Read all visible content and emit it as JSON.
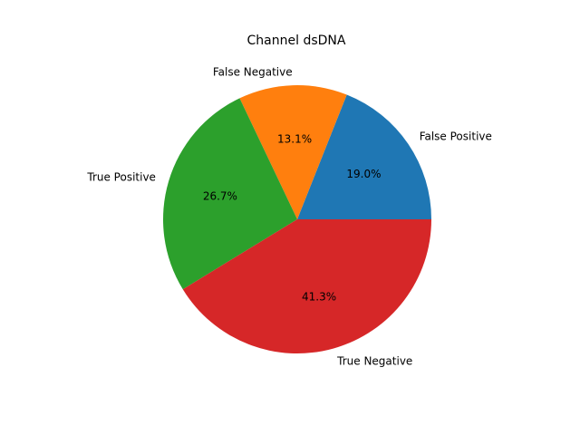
{
  "chart_data": {
    "type": "pie",
    "title": "Channel dsDNA",
    "start_angle_deg": 0,
    "direction": "counterclockwise",
    "slices": [
      {
        "label": "False Positive",
        "value": 19.0,
        "percent_label": "19.0%",
        "color": "#1f77b4"
      },
      {
        "label": "False Negative",
        "value": 13.1,
        "percent_label": "13.1%",
        "color": "#ff7f0e"
      },
      {
        "label": "True Positive",
        "value": 26.7,
        "percent_label": "26.7%",
        "color": "#2ca02c"
      },
      {
        "label": "True Negative",
        "value": 41.3,
        "percent_label": "41.3%",
        "color": "#d62728"
      }
    ]
  }
}
